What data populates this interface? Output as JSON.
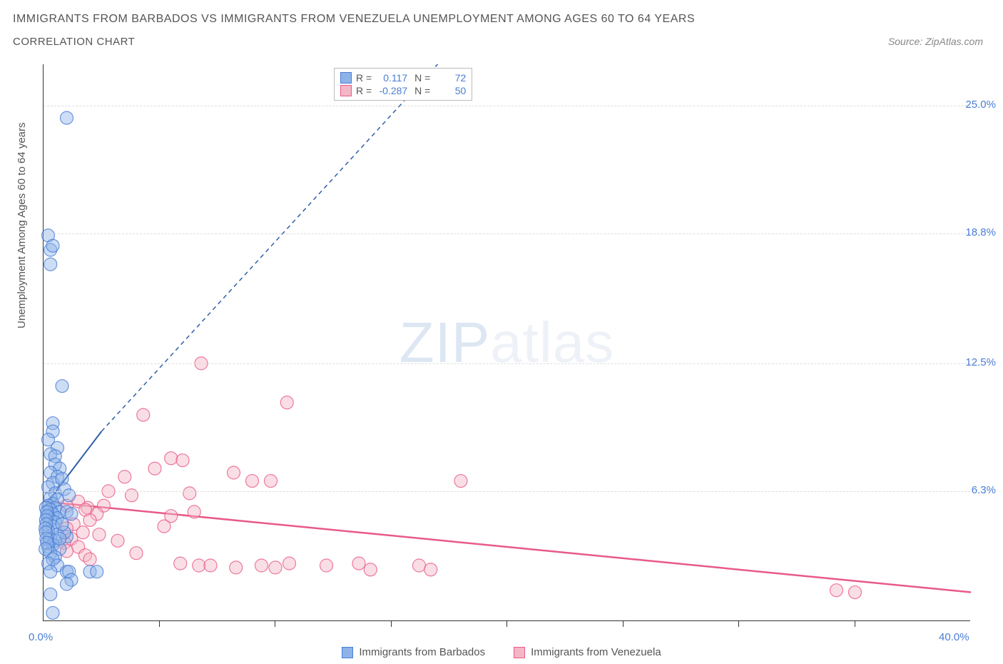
{
  "title_line1": "IMMIGRANTS FROM BARBADOS VS IMMIGRANTS FROM VENEZUELA UNEMPLOYMENT AMONG AGES 60 TO 64 YEARS",
  "title_line2": "CORRELATION CHART",
  "source_text": "Source: ZipAtlas.com",
  "y_axis_label": "Unemployment Among Ages 60 to 64 years",
  "watermark": {
    "bold": "ZIP",
    "light": "atlas"
  },
  "chart": {
    "type": "scatter",
    "xlim": [
      0,
      40
    ],
    "ylim": [
      0,
      27
    ],
    "x_ticks": {
      "label_left": "0.0%",
      "label_right": "40.0%",
      "marks": [
        5,
        10,
        15,
        20,
        25,
        30,
        35
      ]
    },
    "y_ticks": [
      {
        "value": 6.3,
        "label": "6.3%"
      },
      {
        "value": 12.5,
        "label": "12.5%"
      },
      {
        "value": 18.8,
        "label": "18.8%"
      },
      {
        "value": 25.0,
        "label": "25.0%"
      }
    ],
    "background_color": "#ffffff",
    "grid_color": "#dddddd",
    "axis_color": "#333333",
    "marker_radius": 9,
    "marker_opacity": 0.45,
    "series": {
      "barbados": {
        "label": "Immigrants from Barbados",
        "fill_color": "#8db3e8",
        "stroke_color": "#4a7dd4",
        "R": "0.117",
        "N": "72",
        "trendline": {
          "solid": [
            [
              0,
              5.5
            ],
            [
              2.5,
              9.2
            ]
          ],
          "dashed": [
            [
              2.5,
              9.2
            ],
            [
              17,
              27
            ]
          ],
          "color": "#2e5fa8",
          "width": 2
        },
        "points": [
          [
            1.0,
            24.4
          ],
          [
            0.2,
            18.7
          ],
          [
            0.3,
            18.0
          ],
          [
            0.4,
            18.2
          ],
          [
            0.3,
            17.3
          ],
          [
            0.8,
            11.4
          ],
          [
            0.4,
            9.6
          ],
          [
            0.4,
            9.2
          ],
          [
            0.2,
            8.8
          ],
          [
            0.6,
            8.4
          ],
          [
            0.3,
            8.1
          ],
          [
            0.5,
            8.0
          ],
          [
            0.5,
            7.6
          ],
          [
            0.7,
            7.4
          ],
          [
            0.3,
            7.2
          ],
          [
            0.6,
            7.0
          ],
          [
            0.4,
            6.7
          ],
          [
            0.2,
            6.5
          ],
          [
            0.8,
            6.9
          ],
          [
            0.5,
            6.2
          ],
          [
            0.3,
            6.0
          ],
          [
            0.6,
            5.9
          ],
          [
            0.4,
            5.7
          ],
          [
            0.2,
            5.6
          ],
          [
            0.5,
            5.5
          ],
          [
            0.3,
            5.4
          ],
          [
            0.7,
            5.3
          ],
          [
            0.4,
            5.2
          ],
          [
            0.2,
            5.1
          ],
          [
            0.6,
            5.0
          ],
          [
            0.3,
            4.9
          ],
          [
            0.5,
            4.8
          ],
          [
            0.4,
            4.6
          ],
          [
            0.2,
            4.4
          ],
          [
            0.6,
            4.2
          ],
          [
            0.3,
            4.0
          ],
          [
            0.5,
            3.9
          ],
          [
            0.4,
            3.7
          ],
          [
            0.2,
            3.6
          ],
          [
            0.7,
            3.5
          ],
          [
            0.3,
            3.3
          ],
          [
            0.5,
            3.1
          ],
          [
            0.4,
            3.0
          ],
          [
            0.2,
            2.8
          ],
          [
            0.6,
            2.7
          ],
          [
            1.0,
            2.4
          ],
          [
            1.1,
            2.4
          ],
          [
            1.2,
            2.0
          ],
          [
            1.0,
            1.8
          ],
          [
            0.3,
            2.4
          ],
          [
            2.0,
            2.4
          ],
          [
            2.3,
            2.4
          ],
          [
            0.3,
            1.3
          ],
          [
            0.4,
            0.4
          ],
          [
            1.0,
            5.3
          ],
          [
            1.2,
            5.2
          ],
          [
            0.9,
            6.4
          ],
          [
            1.1,
            6.1
          ],
          [
            1.0,
            4.1
          ],
          [
            0.9,
            4.3
          ],
          [
            0.8,
            4.7
          ],
          [
            0.7,
            4.0
          ],
          [
            0.1,
            5.5
          ],
          [
            0.15,
            5.3
          ],
          [
            0.15,
            5.1
          ],
          [
            0.1,
            4.9
          ],
          [
            0.12,
            4.7
          ],
          [
            0.08,
            4.5
          ],
          [
            0.1,
            4.3
          ],
          [
            0.12,
            4.0
          ],
          [
            0.15,
            3.8
          ],
          [
            0.08,
            3.5
          ]
        ]
      },
      "venezuela": {
        "label": "Immigrants from Venezuela",
        "fill_color": "#f3b6c6",
        "stroke_color": "#e85a87",
        "R": "-0.287",
        "N": "50",
        "trendline": {
          "solid": [
            [
              0,
              5.8
            ],
            [
              40,
              1.4
            ]
          ],
          "color": "#e85a87",
          "width": 2.5
        },
        "points": [
          [
            6.8,
            12.5
          ],
          [
            4.3,
            10.0
          ],
          [
            10.5,
            10.6
          ],
          [
            5.5,
            7.9
          ],
          [
            6.0,
            7.8
          ],
          [
            3.5,
            7.0
          ],
          [
            4.8,
            7.4
          ],
          [
            8.2,
            7.2
          ],
          [
            9.0,
            6.8
          ],
          [
            9.8,
            6.8
          ],
          [
            18.0,
            6.8
          ],
          [
            2.8,
            6.3
          ],
          [
            3.8,
            6.1
          ],
          [
            6.3,
            6.2
          ],
          [
            1.9,
            5.5
          ],
          [
            2.6,
            5.6
          ],
          [
            5.5,
            5.1
          ],
          [
            1.0,
            5.6
          ],
          [
            1.5,
            5.8
          ],
          [
            1.8,
            5.4
          ],
          [
            2.3,
            5.2
          ],
          [
            2.0,
            4.9
          ],
          [
            1.3,
            4.7
          ],
          [
            1.0,
            4.5
          ],
          [
            1.7,
            4.3
          ],
          [
            2.4,
            4.2
          ],
          [
            1.2,
            4.0
          ],
          [
            0.9,
            3.8
          ],
          [
            1.5,
            3.6
          ],
          [
            1.0,
            3.4
          ],
          [
            1.8,
            3.2
          ],
          [
            2.0,
            3.0
          ],
          [
            5.9,
            2.8
          ],
          [
            6.7,
            2.7
          ],
          [
            7.2,
            2.7
          ],
          [
            8.3,
            2.6
          ],
          [
            9.4,
            2.7
          ],
          [
            10.0,
            2.6
          ],
          [
            10.6,
            2.8
          ],
          [
            12.2,
            2.7
          ],
          [
            13.6,
            2.8
          ],
          [
            14.1,
            2.5
          ],
          [
            16.2,
            2.7
          ],
          [
            16.7,
            2.5
          ],
          [
            34.2,
            1.5
          ],
          [
            35.0,
            1.4
          ],
          [
            3.2,
            3.9
          ],
          [
            4.0,
            3.3
          ],
          [
            5.2,
            4.6
          ],
          [
            6.5,
            5.3
          ]
        ]
      }
    }
  }
}
